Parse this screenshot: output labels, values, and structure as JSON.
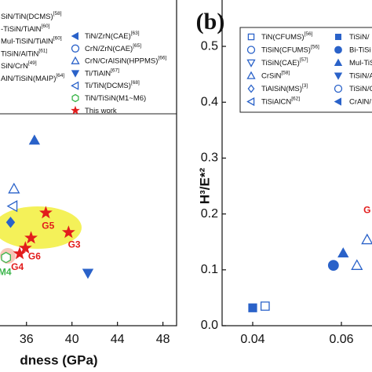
{
  "chart_data": [
    {
      "type": "scatter",
      "x_label": "dness (GPa)",
      "xlim": [
        31.6,
        49.2
      ],
      "ylim": [
        0,
        0.59
      ],
      "xticks": [
        36,
        40,
        44,
        48
      ],
      "series": [
        {
          "name": "SiN/TiN(DCMS)",
          "ref": "[58]",
          "marker": "square-open",
          "color": "#2a62c9",
          "x": [],
          "values": []
        },
        {
          "name": "-TiSiN/TiAlN",
          "ref": "[60]",
          "marker": "circle-open",
          "color": "#2a62c9",
          "x": [],
          "values": []
        },
        {
          "name": "Mul-TiSiN/TiAlN",
          "ref": "[60]",
          "marker": "triangle-up",
          "color": "#2a62c9",
          "x": [
            36.7
          ],
          "values": [
            0.332
          ]
        },
        {
          "name": "TiSiN/AlTiN",
          "ref": "[61]",
          "marker": "triangle-down-open",
          "color": "#2a62c9",
          "x": [],
          "values": []
        },
        {
          "name": "SiN/CrN",
          "ref": "[49]",
          "marker": "diamond",
          "color": "#2a62c9",
          "x": [
            34.6
          ],
          "values": [
            0.185
          ]
        },
        {
          "name": "AlN/TiSiN(MAIP)",
          "ref": "[64]",
          "marker": "square",
          "color": "#2a62c9",
          "x": [],
          "values": []
        },
        {
          "name": "TiN/ZrN(CAE)",
          "ref": "[63]",
          "marker": "triangle-left",
          "color": "#2a62c9",
          "x": [],
          "values": []
        },
        {
          "name": "CrN/ZrN(CAE)",
          "ref": "[65]",
          "marker": "circle-open",
          "color": "#2a62c9",
          "x": [],
          "values": []
        },
        {
          "name": "CrN/CrAlSiN(HPPMS)",
          "ref": "[66]",
          "marker": "triangle-up-open",
          "color": "#2a62c9",
          "x": [
            34.9
          ],
          "values": [
            0.245
          ]
        },
        {
          "name": "Ti/TiAlN",
          "ref": "[67]",
          "marker": "triangle-down",
          "color": "#2a62c9",
          "x": [
            41.4
          ],
          "values": [
            0.094
          ]
        },
        {
          "name": "Ti/TiN(DCMS)",
          "ref": "[68]",
          "marker": "triangle-left-open",
          "color": "#2a62c9",
          "x": [
            34.8
          ],
          "values": [
            0.214
          ]
        },
        {
          "name": "TiN/TiSiN(M1~M6)",
          "marker": "hexagon-open",
          "color": "#3bb54a",
          "x": [
            34.2
          ],
          "values": [
            0.122
          ]
        },
        {
          "name": "This work",
          "marker": "star",
          "color": "#e21c1c",
          "x": [
            37.7,
            39.7,
            36.4,
            35.9,
            35.4
          ],
          "values": [
            0.202,
            0.167,
            0.157,
            0.139,
            0.129
          ]
        }
      ],
      "annotations": [
        {
          "text": "G5",
          "x": 37.9,
          "y": 0.178,
          "color": "#e21c1c"
        },
        {
          "text": "G3",
          "x": 40.2,
          "y": 0.144,
          "color": "#e21c1c"
        },
        {
          "text": "G6",
          "x": 36.7,
          "y": 0.123,
          "color": "#e21c1c"
        },
        {
          "text": "G4",
          "x": 35.2,
          "y": 0.104,
          "color": "#e21c1c"
        },
        {
          "text": "M4",
          "x": 34.1,
          "y": 0.095,
          "color": "#3bb54a"
        }
      ]
    },
    {
      "type": "scatter",
      "panel_label": "(b)",
      "y_label": "H³/E*²",
      "xlim": [
        0.0331,
        0.0715
      ],
      "ylim": [
        0,
        0.59
      ],
      "xticks": [
        0.04,
        0.06
      ],
      "yticks": [
        {
          "value": 0,
          "label": "0.0"
        },
        0.1,
        0.2,
        0.3,
        0.4,
        0.5
      ],
      "series": [
        {
          "name": "TiN(CFUMS)",
          "ref": "[56]",
          "marker": "square-open",
          "color": "#2a62c9",
          "x": [
            0.0428
          ],
          "values": [
            0.035
          ]
        },
        {
          "name": "TiSiN(CFUMS)",
          "ref": "[56]",
          "marker": "circle-open",
          "color": "#2a62c9",
          "x": [],
          "values": []
        },
        {
          "name": "TiSiN(CAE)",
          "ref": "[57]",
          "marker": "triangle-down-open",
          "color": "#2a62c9",
          "x": [],
          "values": []
        },
        {
          "name": "CrSiN",
          "ref": "[58]",
          "marker": "triangle-up-open",
          "color": "#2a62c9",
          "x": [
            0.0635,
            0.0658
          ],
          "values": [
            0.108,
            0.154
          ]
        },
        {
          "name": "TiAlSiN(MS)",
          "ref": "[3]",
          "marker": "diamond-open",
          "color": "#2a62c9",
          "x": [],
          "values": []
        },
        {
          "name": "TiSiAlCN",
          "ref": "[62]",
          "marker": "triangle-left-open",
          "color": "#2a62c9",
          "x": [],
          "values": []
        },
        {
          "name": "TiSiN/",
          "marker": "square",
          "color": "#2a62c9",
          "x": [
            0.04
          ],
          "values": [
            0.032
          ]
        },
        {
          "name": "Bi-TiSi",
          "marker": "circle",
          "color": "#2a62c9",
          "x": [
            0.0582
          ],
          "values": [
            0.108
          ]
        },
        {
          "name": "Mul-TiSi",
          "marker": "triangle-up",
          "color": "#2a62c9",
          "x": [
            0.0604
          ],
          "values": [
            0.13
          ]
        },
        {
          "name": "TiSiN/A",
          "marker": "triangle-down",
          "color": "#2a62c9",
          "x": [],
          "values": []
        },
        {
          "name": "TiSiN/C",
          "marker": "circle-open",
          "color": "#2a62c9",
          "x": [],
          "values": []
        },
        {
          "name": "CrAlN/",
          "marker": "triangle-left",
          "color": "#2a62c9",
          "x": [],
          "values": []
        }
      ],
      "annotations": [
        {
          "text": "G",
          "x": 0.0658,
          "y": 0.206,
          "color": "#e21c1c"
        }
      ]
    }
  ]
}
